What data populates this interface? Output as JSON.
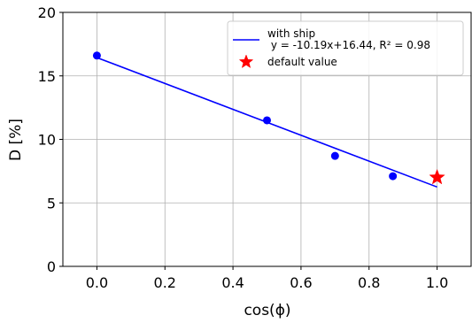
{
  "chart_data": {
    "type": "scatter",
    "xlabel": "cos(ϕ)",
    "ylabel": "D [%]",
    "xlim": [
      -0.1,
      1.1
    ],
    "ylim": [
      0,
      20
    ],
    "x_ticks": [
      "0.0",
      "0.2",
      "0.4",
      "0.6",
      "0.8",
      "1.0"
    ],
    "y_ticks": [
      "0",
      "5",
      "10",
      "15",
      "20"
    ],
    "grid": true,
    "legend_position": "top-right",
    "series": [
      {
        "kind": "points",
        "color": "#0000ff",
        "x": [
          0.0,
          0.5,
          0.7,
          0.87
        ],
        "y": [
          16.6,
          11.5,
          8.7,
          7.1
        ]
      },
      {
        "name": "with ship\n y = -10.19x+16.44, R² = 0.98",
        "legend_line1": "with ship",
        "legend_line2": " y = -10.19x+16.44, R² = 0.98",
        "kind": "fit-line",
        "color": "#0000ff",
        "slope": -10.19,
        "intercept": 16.44,
        "x_range": [
          0.0,
          1.0
        ]
      },
      {
        "name": "default value",
        "kind": "star-marker",
        "color": "#ff0000",
        "x": [
          1.0
        ],
        "y": [
          7.0
        ]
      }
    ]
  }
}
